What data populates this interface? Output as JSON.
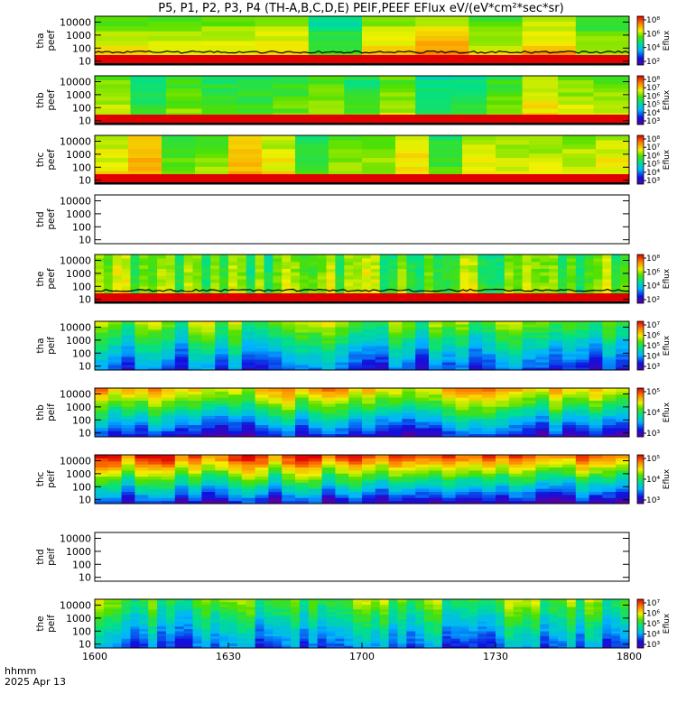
{
  "chart_data": {
    "type": "heatmap",
    "title": "P5, P1, P2, P3, P4 (TH-A,B,C,D,E) PEIF,PEEF EFlux eV/(eV*cm²*sec*sr)",
    "x": {
      "label_line1": "hhmm",
      "label_line2": "2025 Apr 13",
      "ticks": [
        "1600",
        "1630",
        "1700",
        "1730",
        "1800"
      ],
      "range_minutes": [
        0,
        120
      ]
    },
    "y_scale": "log",
    "y_ticks": [
      "10",
      "100",
      "1000",
      "10000"
    ],
    "colorbar_label": "Eflux",
    "panels": [
      {
        "probe": "tha",
        "product": "peef",
        "empty": false,
        "floor": "red",
        "baseline_curve": true,
        "cb_ticks": [
          "10²",
          "10⁴",
          "10⁶",
          "10⁸"
        ],
        "cb_exps": [
          2,
          4,
          6,
          8
        ]
      },
      {
        "probe": "thb",
        "product": "peef",
        "empty": false,
        "floor": "red",
        "baseline_curve": false,
        "cb_ticks": [
          "10³",
          "10⁴",
          "10⁵",
          "10⁶",
          "10⁷",
          "10⁸"
        ],
        "cb_exps": [
          3,
          4,
          5,
          6,
          7,
          8
        ]
      },
      {
        "probe": "thc",
        "product": "peef",
        "empty": false,
        "floor": "red",
        "baseline_curve": false,
        "cb_ticks": [
          "10³",
          "10⁴",
          "10⁵",
          "10⁶",
          "10⁷",
          "10⁸"
        ],
        "cb_exps": [
          3,
          4,
          5,
          6,
          7,
          8
        ]
      },
      {
        "probe": "thd",
        "product": "peef",
        "empty": true,
        "floor": "none",
        "baseline_curve": false,
        "cb_ticks": [],
        "cb_exps": []
      },
      {
        "probe": "the",
        "product": "peef",
        "empty": false,
        "floor": "red",
        "baseline_curve": true,
        "cb_ticks": [
          "10²",
          "10⁴",
          "10⁶",
          "10⁸"
        ],
        "cb_exps": [
          2,
          4,
          6,
          8
        ]
      },
      {
        "probe": "tha",
        "product": "peif",
        "empty": false,
        "floor": "none",
        "baseline_curve": false,
        "cb_ticks": [
          "10³",
          "10⁴",
          "10⁵",
          "10⁶",
          "10⁷"
        ],
        "cb_exps": [
          3,
          4,
          5,
          6,
          7
        ]
      },
      {
        "probe": "thb",
        "product": "peif",
        "empty": false,
        "floor": "none",
        "baseline_curve": false,
        "cb_ticks": [
          "10³",
          "10⁴",
          "10⁵"
        ],
        "cb_exps": [
          3,
          4,
          5
        ]
      },
      {
        "probe": "thc",
        "product": "peif",
        "empty": false,
        "floor": "none",
        "baseline_curve": false,
        "cb_ticks": [
          "10³",
          "10⁴",
          "10⁵"
        ],
        "cb_exps": [
          3,
          4,
          5
        ]
      },
      {
        "probe": "thd",
        "product": "peif",
        "empty": true,
        "floor": "none",
        "baseline_curve": false,
        "cb_ticks": [],
        "cb_exps": []
      },
      {
        "probe": "the",
        "product": "peif",
        "empty": false,
        "floor": "none",
        "baseline_curve": false,
        "cb_ticks": [
          "10³",
          "10⁴",
          "10⁵",
          "10⁶",
          "10⁷"
        ],
        "cb_exps": [
          3,
          4,
          5,
          6,
          7
        ]
      }
    ]
  }
}
